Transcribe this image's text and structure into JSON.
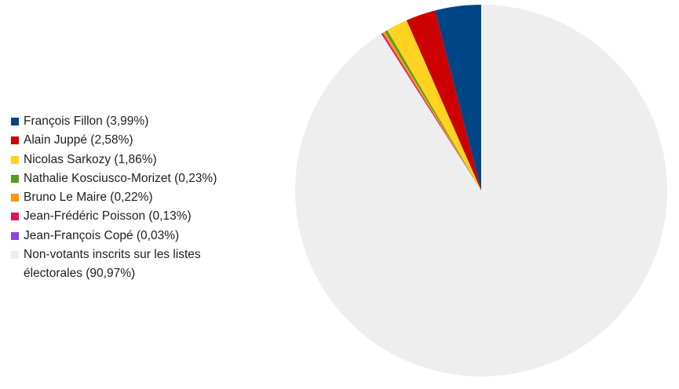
{
  "chart_data": {
    "type": "pie",
    "title": "",
    "start_angle": "12 o'clock",
    "direction": "counterclockwise",
    "legend_position": "left",
    "slices": [
      {
        "label": "François Fillon (3,99%)",
        "value": 3.99,
        "color": "#004586"
      },
      {
        "label": "Alain Juppé (2,58%)",
        "value": 2.58,
        "color": "#cc0000"
      },
      {
        "label": "Nicolas Sarkozy (1,86%)",
        "value": 1.86,
        "color": "#ffd320"
      },
      {
        "label": "Nathalie Kosciusco-Morizet (0,23%)",
        "value": 0.23,
        "color": "#579d1c"
      },
      {
        "label": "Bruno Le Maire (0,22%)",
        "value": 0.22,
        "color": "#ff950e"
      },
      {
        "label": "Jean-Frédéric Poisson (0,13%)",
        "value": 0.13,
        "color": "#e0115f"
      },
      {
        "label": "Jean-François Copé (0,03%)",
        "value": 0.03,
        "color": "#8e44e0"
      },
      {
        "label": "Non-votants inscrits sur les listes électorales (90,97%)",
        "value": 90.97,
        "color": "#eeeeee"
      }
    ]
  }
}
